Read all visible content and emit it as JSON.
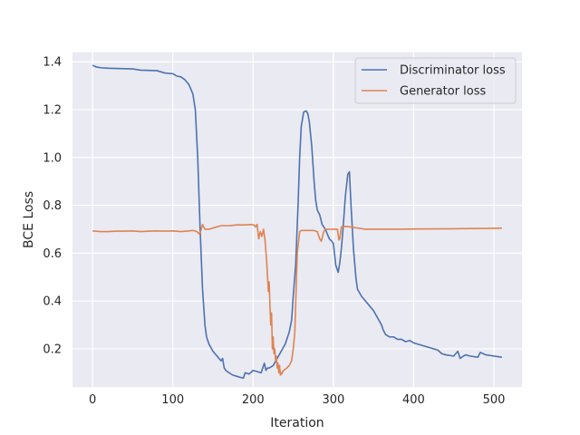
{
  "chart_data": {
    "type": "line",
    "title": "",
    "xlabel": "Iteration",
    "ylabel": "BCE Loss",
    "xlim": [
      -25,
      535
    ],
    "ylim": [
      0.04,
      1.44
    ],
    "xticks": [
      0,
      100,
      200,
      300,
      400,
      500
    ],
    "xtick_labels": [
      "0",
      "100",
      "200",
      "300",
      "400",
      "500"
    ],
    "yticks": [
      0.2,
      0.4,
      0.6,
      0.8,
      1.0,
      1.2,
      1.4
    ],
    "ytick_labels": [
      "0.2",
      "0.4",
      "0.6",
      "0.8",
      "1.0",
      "1.2",
      "1.4"
    ],
    "grid": true,
    "legend_position": "top-right",
    "colors": {
      "background": "#eaeaf2",
      "grid": "#ffffff",
      "series": [
        "#4c72b0",
        "#dd8452"
      ]
    },
    "series": [
      {
        "name": "Discriminator loss",
        "color": "#4c72b0",
        "x": [
          0,
          5,
          10,
          20,
          30,
          50,
          60,
          80,
          90,
          100,
          105,
          110,
          115,
          120,
          125,
          128,
          131,
          134,
          137,
          140,
          142,
          145,
          150,
          155,
          160,
          162,
          164,
          166,
          170,
          175,
          180,
          185,
          188,
          190,
          192,
          195,
          200,
          205,
          210,
          212,
          214,
          216,
          218,
          220,
          225,
          230,
          235,
          240,
          245,
          248,
          250,
          253,
          256,
          258,
          260,
          263,
          266,
          268,
          270,
          273,
          276,
          278,
          280,
          283,
          286,
          290,
          295,
          298,
          300,
          303,
          306,
          308,
          310,
          312,
          315,
          318,
          320,
          322,
          325,
          328,
          330,
          335,
          340,
          345,
          350,
          355,
          360,
          362,
          365,
          370,
          375,
          380,
          385,
          390,
          395,
          400,
          410,
          420,
          430,
          435,
          440,
          450,
          455,
          458,
          462,
          465,
          470,
          480,
          483,
          490,
          500,
          510
        ],
        "y": [
          1.385,
          1.378,
          1.375,
          1.373,
          1.372,
          1.37,
          1.365,
          1.363,
          1.353,
          1.35,
          1.34,
          1.337,
          1.325,
          1.305,
          1.265,
          1.2,
          1.0,
          0.7,
          0.45,
          0.3,
          0.25,
          0.22,
          0.19,
          0.17,
          0.15,
          0.16,
          0.12,
          0.11,
          0.1,
          0.09,
          0.085,
          0.08,
          0.078,
          0.1,
          0.098,
          0.095,
          0.11,
          0.105,
          0.1,
          0.12,
          0.14,
          0.11,
          0.12,
          0.12,
          0.13,
          0.16,
          0.19,
          0.22,
          0.27,
          0.32,
          0.42,
          0.55,
          0.8,
          1.0,
          1.13,
          1.19,
          1.195,
          1.185,
          1.15,
          1.05,
          0.9,
          0.82,
          0.78,
          0.76,
          0.72,
          0.7,
          0.66,
          0.65,
          0.64,
          0.55,
          0.52,
          0.56,
          0.62,
          0.7,
          0.84,
          0.93,
          0.94,
          0.8,
          0.62,
          0.5,
          0.45,
          0.42,
          0.4,
          0.38,
          0.36,
          0.33,
          0.3,
          0.28,
          0.26,
          0.25,
          0.25,
          0.24,
          0.24,
          0.23,
          0.235,
          0.225,
          0.215,
          0.205,
          0.195,
          0.18,
          0.175,
          0.17,
          0.19,
          0.16,
          0.17,
          0.175,
          0.17,
          0.165,
          0.185,
          0.175,
          0.17,
          0.165
        ]
      },
      {
        "name": "Generator loss",
        "color": "#dd8452",
        "x": [
          0,
          10,
          20,
          30,
          40,
          50,
          60,
          70,
          80,
          90,
          100,
          110,
          120,
          125,
          130,
          133,
          135,
          137,
          140,
          145,
          150,
          155,
          160,
          170,
          180,
          190,
          200,
          203,
          205,
          207,
          209,
          211,
          213,
          215,
          217,
          219,
          220,
          221,
          222,
          223,
          224,
          225,
          226,
          227,
          228,
          229,
          230,
          231,
          232,
          233,
          234,
          235,
          236,
          237,
          238,
          240,
          242,
          245,
          248,
          250,
          252,
          255,
          258,
          260,
          265,
          270,
          275,
          280,
          283,
          285,
          288,
          290,
          295,
          300,
          305,
          307,
          308,
          310,
          315,
          320,
          330,
          340,
          350,
          360,
          380,
          400,
          450,
          500,
          510
        ],
        "y": [
          0.693,
          0.69,
          0.69,
          0.692,
          0.692,
          0.693,
          0.69,
          0.692,
          0.693,
          0.692,
          0.693,
          0.69,
          0.693,
          0.695,
          0.69,
          0.68,
          0.695,
          0.72,
          0.7,
          0.7,
          0.705,
          0.71,
          0.715,
          0.715,
          0.718,
          0.718,
          0.72,
          0.71,
          0.72,
          0.66,
          0.69,
          0.67,
          0.7,
          0.65,
          0.56,
          0.44,
          0.48,
          0.38,
          0.3,
          0.35,
          0.2,
          0.25,
          0.18,
          0.2,
          0.15,
          0.17,
          0.12,
          0.14,
          0.1,
          0.13,
          0.09,
          0.1,
          0.095,
          0.105,
          0.11,
          0.115,
          0.12,
          0.13,
          0.15,
          0.2,
          0.27,
          0.6,
          0.69,
          0.695,
          0.695,
          0.695,
          0.695,
          0.69,
          0.66,
          0.65,
          0.69,
          0.7,
          0.7,
          0.7,
          0.7,
          0.655,
          0.66,
          0.71,
          0.712,
          0.71,
          0.705,
          0.7,
          0.7,
          0.7,
          0.7,
          0.701,
          0.702,
          0.704,
          0.705
        ]
      }
    ]
  }
}
